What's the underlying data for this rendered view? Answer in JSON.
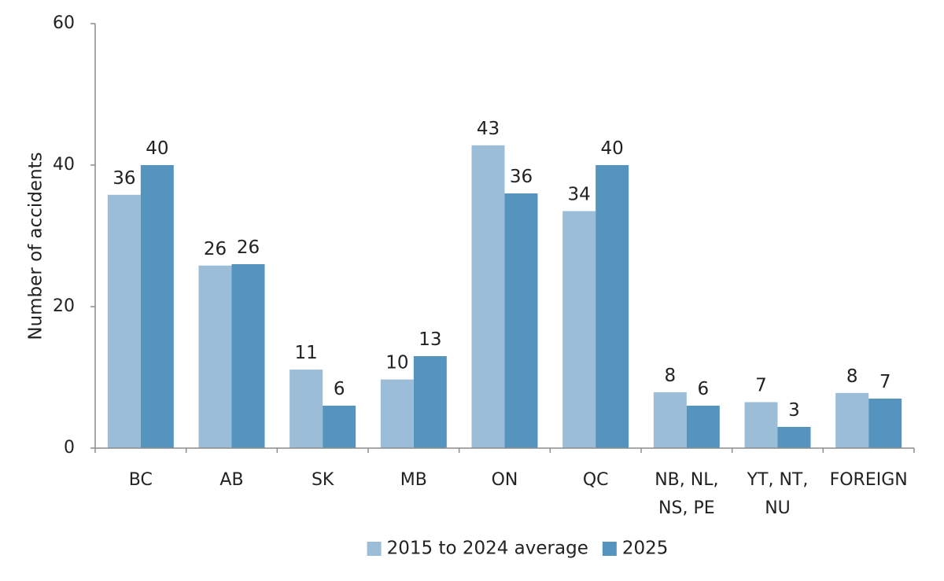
{
  "chart_data": {
    "type": "bar",
    "title": "",
    "xlabel": "",
    "ylabel": "Number of accidents",
    "ylim": [
      0,
      60
    ],
    "yticks": [
      0,
      20,
      40,
      60
    ],
    "grid": false,
    "legend_position": "bottom",
    "categories": [
      [
        "BC"
      ],
      [
        "AB"
      ],
      [
        "SK"
      ],
      [
        "MB"
      ],
      [
        "ON"
      ],
      [
        "QC"
      ],
      [
        "NB, NL,",
        "NS, PE"
      ],
      [
        "YT, NT,",
        "NU"
      ],
      [
        "FOREIGN"
      ]
    ],
    "series": [
      {
        "name": "2015 to 2024 average",
        "color": "#9bbdd8",
        "values": [
          35.8,
          25.8,
          11.1,
          9.7,
          42.8,
          33.5,
          7.9,
          6.5,
          7.8
        ],
        "labels": [
          "36",
          "26",
          "11",
          "10",
          "43",
          "34",
          "8",
          "7",
          "8"
        ]
      },
      {
        "name": "2025",
        "color": "#5594be",
        "values": [
          40,
          26,
          6,
          13,
          36,
          40,
          6,
          3,
          7
        ],
        "labels": [
          "40",
          "26",
          "6",
          "13",
          "36",
          "40",
          "6",
          "3",
          "7"
        ]
      }
    ]
  }
}
